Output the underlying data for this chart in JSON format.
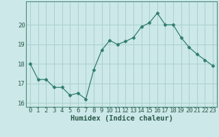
{
  "x": [
    0,
    1,
    2,
    3,
    4,
    5,
    6,
    7,
    8,
    9,
    10,
    11,
    12,
    13,
    14,
    15,
    16,
    17,
    18,
    19,
    20,
    21,
    22,
    23
  ],
  "y": [
    18.0,
    17.2,
    17.2,
    16.8,
    16.8,
    16.4,
    16.5,
    16.2,
    17.7,
    18.7,
    19.2,
    19.0,
    19.15,
    19.35,
    19.9,
    20.1,
    20.6,
    20.0,
    20.0,
    19.35,
    18.85,
    18.5,
    18.2,
    17.9
  ],
  "line_color": "#2e7d6e",
  "marker": "D",
  "marker_size": 2.5,
  "bg_color": "#cce8e8",
  "grid_color": "#aacfcf",
  "xlabel": "Humidex (Indice chaleur)",
  "xlim": [
    -0.5,
    23.5
  ],
  "ylim": [
    15.8,
    21.2
  ],
  "yticks": [
    16,
    17,
    18,
    19,
    20
  ],
  "xticks": [
    0,
    1,
    2,
    3,
    4,
    5,
    6,
    7,
    8,
    9,
    10,
    11,
    12,
    13,
    14,
    15,
    16,
    17,
    18,
    19,
    20,
    21,
    22,
    23
  ],
  "xlabel_fontsize": 7.5,
  "tick_fontsize": 6.5,
  "spine_color": "#4a8a7a"
}
